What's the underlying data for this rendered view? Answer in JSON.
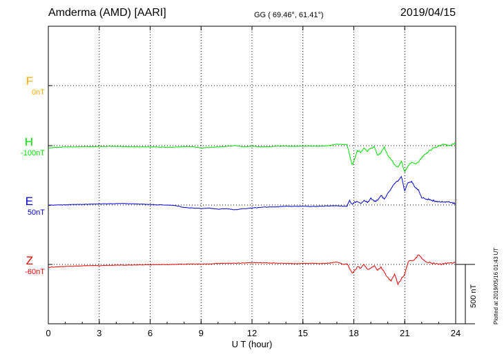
{
  "header": {
    "station": "Amderma (AMD)  [AARI]",
    "coords": "GG ( 69.46°,  61.41°)",
    "date": "2019/04/15"
  },
  "footnote": "Plotted at 2019/05/16 01:43 UT",
  "scale_bar": {
    "label": "500 nT",
    "value_nT": 500
  },
  "colors": {
    "F": "#ffaa00",
    "H": "#00dd00",
    "E": "#0000cc",
    "Z": "#ee0000"
  },
  "chart_data": {
    "type": "line",
    "xlabel": "U T (hour)",
    "xlim": [
      0,
      24
    ],
    "xticks": [
      0,
      3,
      6,
      9,
      12,
      15,
      18,
      21,
      24
    ],
    "grid": true,
    "y_units": "nT",
    "series": [
      {
        "name": "F",
        "baseline_label": "0nT",
        "baseline": 0,
        "x": [],
        "values": []
      },
      {
        "name": "H",
        "baseline_label": "-100nT",
        "baseline": -100,
        "x": [
          0,
          0.5,
          1,
          1.5,
          2,
          2.5,
          3,
          3.5,
          4,
          4.5,
          5,
          5.5,
          6,
          6.5,
          7,
          7.5,
          8,
          8.5,
          9,
          9.5,
          10,
          10.5,
          11,
          11.5,
          12,
          12.5,
          13,
          13.5,
          14,
          14.5,
          15,
          15.5,
          16,
          16.5,
          17,
          17.4,
          17.6,
          17.75,
          17.9,
          18,
          18.2,
          18.4,
          18.6,
          18.8,
          19,
          19.2,
          19.4,
          19.6,
          19.8,
          20,
          20.2,
          20.4,
          20.6,
          20.8,
          21,
          21.2,
          21.4,
          21.6,
          21.8,
          22,
          22.3,
          22.6,
          23,
          23.3,
          23.6,
          24
        ],
        "values": [
          -120,
          -115,
          -110,
          -110,
          -108,
          -108,
          -106,
          -106,
          -106,
          -108,
          -110,
          -110,
          -110,
          -112,
          -115,
          -112,
          -108,
          -108,
          -120,
          -115,
          -110,
          -105,
          -100,
          -110,
          -105,
          -110,
          -108,
          -104,
          -104,
          -106,
          -104,
          -104,
          -104,
          -100,
          -88,
          -90,
          -92,
          -180,
          -260,
          -230,
          -140,
          -160,
          -120,
          -150,
          -120,
          -110,
          -180,
          -160,
          -110,
          -180,
          -220,
          -260,
          -280,
          -230,
          -320,
          -270,
          -240,
          -250,
          -240,
          -200,
          -160,
          -130,
          -100,
          -90,
          -100,
          -80
        ]
      },
      {
        "name": "E",
        "baseline_label": "50nT",
        "baseline": 50,
        "x": [
          0,
          0.5,
          1,
          1.5,
          2,
          2.5,
          3,
          3.5,
          4,
          4.5,
          5,
          5.5,
          6,
          6.5,
          7,
          7.5,
          8,
          8.5,
          9,
          9.5,
          10,
          10.5,
          11,
          11.5,
          12,
          12.5,
          13,
          13.5,
          14,
          14.5,
          15,
          15.5,
          16,
          16.5,
          17,
          17.4,
          17.6,
          17.75,
          17.9,
          18,
          18.2,
          18.4,
          18.6,
          18.8,
          19,
          19.2,
          19.4,
          19.6,
          19.8,
          20,
          20.2,
          20.4,
          20.6,
          20.8,
          21,
          21.2,
          21.4,
          21.6,
          21.8,
          22,
          22.3,
          22.6,
          23,
          23.3,
          23.6,
          24
        ],
        "values": [
          48,
          50,
          52,
          55,
          55,
          58,
          60,
          60,
          62,
          62,
          60,
          58,
          55,
          52,
          50,
          45,
          30,
          25,
          20,
          25,
          15,
          20,
          10,
          20,
          25,
          30,
          35,
          35,
          40,
          40,
          40,
          38,
          40,
          42,
          45,
          40,
          40,
          90,
          60,
          70,
          80,
          65,
          90,
          70,
          110,
          80,
          90,
          130,
          100,
          150,
          190,
          230,
          250,
          290,
          170,
          240,
          250,
          200,
          180,
          110,
          100,
          90,
          80,
          75,
          80,
          60
        ]
      },
      {
        "name": "Z",
        "baseline_label": "-60nT",
        "baseline": -60,
        "x": [
          0,
          0.5,
          1,
          1.5,
          2,
          2.5,
          3,
          3.5,
          4,
          4.5,
          5,
          5.5,
          6,
          6.5,
          7,
          7.5,
          8,
          8.5,
          9,
          9.5,
          10,
          10.5,
          11,
          11.5,
          12,
          12.5,
          13,
          13.5,
          14,
          14.5,
          15,
          15.5,
          16,
          16.5,
          17,
          17.4,
          17.6,
          17.75,
          17.9,
          18,
          18.2,
          18.4,
          18.6,
          18.8,
          19,
          19.2,
          19.4,
          19.6,
          19.8,
          20,
          20.2,
          20.4,
          20.6,
          20.8,
          21,
          21.2,
          21.4,
          21.6,
          21.8,
          22,
          22.3,
          22.6,
          23,
          23.3,
          23.6,
          24
        ],
        "values": [
          -85,
          -80,
          -78,
          -75,
          -72,
          -70,
          -70,
          -68,
          -66,
          -66,
          -65,
          -64,
          -64,
          -62,
          -62,
          -60,
          -58,
          -56,
          -58,
          -55,
          -52,
          -50,
          -50,
          -48,
          -45,
          -45,
          -48,
          -50,
          -52,
          -54,
          -52,
          -50,
          -52,
          -50,
          -40,
          -60,
          -55,
          -100,
          -130,
          -120,
          -80,
          -90,
          -60,
          -100,
          -90,
          -70,
          -110,
          -80,
          -130,
          -170,
          -200,
          -140,
          -230,
          -180,
          -140,
          -40,
          -30,
          -15,
          20,
          -10,
          -40,
          -50,
          -60,
          -55,
          -50,
          -45
        ]
      }
    ]
  }
}
